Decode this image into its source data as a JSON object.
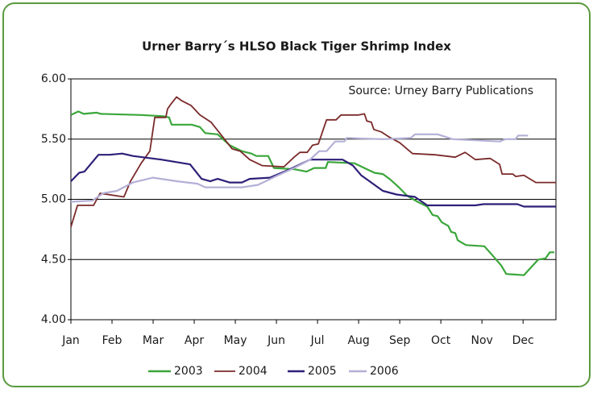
{
  "chart_data": {
    "type": "line",
    "title": "Urner Barry´s HLSO Black Tiger Shrimp Index",
    "annotation": "Source: Urney Barry Publications",
    "xlim": [
      0,
      11.8
    ],
    "xticks": [
      {
        "value": 0,
        "label": "Jan"
      },
      {
        "value": 1,
        "label": "Feb"
      },
      {
        "value": 2,
        "label": "Mar"
      },
      {
        "value": 3,
        "label": "Apr"
      },
      {
        "value": 4,
        "label": "May"
      },
      {
        "value": 5,
        "label": "Jun"
      },
      {
        "value": 6,
        "label": "Jul"
      },
      {
        "value": 7,
        "label": "Aug"
      },
      {
        "value": 8,
        "label": "Sep"
      },
      {
        "value": 9,
        "label": "Oct"
      },
      {
        "value": 10,
        "label": "Nov"
      },
      {
        "value": 11,
        "label": "Dec"
      }
    ],
    "ylim": [
      4,
      6
    ],
    "yticks": [
      {
        "value": 4,
        "label": "4.00"
      },
      {
        "value": 4.5,
        "label": "4.50"
      },
      {
        "value": 5,
        "label": "5.00"
      },
      {
        "value": 5.5,
        "label": "5.50"
      },
      {
        "value": 6,
        "label": "6.00"
      }
    ],
    "grid": true,
    "legend": "bottom",
    "series": [
      {
        "name": "2003",
        "color": "#3aa63a",
        "x": [
          0,
          0.18,
          0.31,
          0.63,
          0.73,
          1.71,
          2.25,
          2.39,
          2.45,
          2.94,
          3.14,
          3.27,
          3.57,
          3.86,
          4.16,
          4.39,
          4.51,
          4.8,
          4.94,
          5.43,
          5.73,
          5.92,
          6.2,
          6.25,
          6.9,
          7.2,
          7.39,
          7.59,
          7.75,
          7.98,
          8.18,
          8.43,
          8.67,
          8.8,
          8.92,
          9.02,
          9.18,
          9.25,
          9.35,
          9.41,
          9.61,
          10.06,
          10.27,
          10.47,
          10.59,
          11.02,
          11.18,
          11.37,
          11.55,
          11.65,
          11.76
        ],
        "values": [
          5.7,
          5.73,
          5.71,
          5.72,
          5.71,
          5.7,
          5.69,
          5.68,
          5.62,
          5.62,
          5.6,
          5.55,
          5.54,
          5.45,
          5.4,
          5.38,
          5.36,
          5.36,
          5.26,
          5.25,
          5.23,
          5.26,
          5.26,
          5.31,
          5.3,
          5.25,
          5.22,
          5.21,
          5.17,
          5.1,
          5.03,
          4.98,
          4.94,
          4.87,
          4.86,
          4.81,
          4.78,
          4.73,
          4.72,
          4.66,
          4.62,
          4.61,
          4.53,
          4.45,
          4.38,
          4.37,
          4.43,
          4.5,
          4.51,
          4.56,
          4.56
        ]
      },
      {
        "name": "2004",
        "color": "#7b2a2a",
        "x": [
          0,
          0.16,
          0.55,
          0.71,
          1.29,
          1.45,
          1.71,
          1.92,
          2.04,
          2.31,
          2.35,
          2.43,
          2.57,
          2.69,
          2.92,
          3.14,
          3.41,
          3.69,
          3.92,
          4.12,
          4.35,
          4.65,
          5.18,
          5.43,
          5.57,
          5.75,
          5.88,
          6.02,
          6.22,
          6.45,
          6.57,
          7.0,
          7.14,
          7.2,
          7.31,
          7.37,
          7.55,
          7.73,
          8.0,
          8.31,
          8.86,
          9.35,
          9.59,
          9.84,
          10.2,
          10.43,
          10.49,
          10.75,
          10.82,
          11.02,
          11.31,
          11.8
        ],
        "values": [
          4.77,
          4.95,
          4.95,
          5.05,
          5.02,
          5.15,
          5.3,
          5.4,
          5.68,
          5.68,
          5.75,
          5.79,
          5.85,
          5.82,
          5.78,
          5.7,
          5.64,
          5.52,
          5.42,
          5.4,
          5.33,
          5.28,
          5.27,
          5.35,
          5.39,
          5.39,
          5.45,
          5.46,
          5.66,
          5.66,
          5.7,
          5.7,
          5.71,
          5.65,
          5.64,
          5.58,
          5.56,
          5.52,
          5.47,
          5.38,
          5.37,
          5.35,
          5.39,
          5.33,
          5.34,
          5.29,
          5.21,
          5.21,
          5.19,
          5.2,
          5.14,
          5.14
        ]
      },
      {
        "name": "2005",
        "color": "#2e1f78",
        "x": [
          0,
          0.2,
          0.33,
          0.67,
          0.94,
          1.25,
          1.51,
          2.2,
          2.9,
          3.18,
          3.39,
          3.57,
          3.86,
          4.16,
          4.35,
          4.84,
          5.33,
          5.63,
          5.82,
          6.61,
          6.86,
          7.06,
          7.59,
          7.92,
          8.37,
          8.67,
          9.84,
          10.04,
          10.86,
          11.02,
          11.8
        ],
        "values": [
          5.15,
          5.22,
          5.23,
          5.37,
          5.37,
          5.38,
          5.36,
          5.33,
          5.29,
          5.17,
          5.15,
          5.17,
          5.14,
          5.14,
          5.17,
          5.18,
          5.25,
          5.3,
          5.33,
          5.33,
          5.28,
          5.2,
          5.07,
          5.04,
          5.02,
          4.95,
          4.95,
          4.96,
          4.96,
          4.94,
          4.94
        ]
      },
      {
        "name": "2006",
        "color": "#b3b0d6",
        "x": [
          0,
          0.53,
          0.78,
          1.12,
          1.51,
          2.0,
          2.59,
          3.08,
          3.27,
          4.16,
          4.55,
          5.04,
          5.43,
          5.82,
          6.04,
          6.22,
          6.43,
          6.65,
          6.71,
          7.59,
          8.27,
          8.37,
          8.92,
          9.29,
          10.43,
          10.57,
          10.82,
          10.88,
          11.12
        ],
        "values": [
          4.98,
          4.99,
          5.05,
          5.07,
          5.14,
          5.18,
          5.15,
          5.13,
          5.1,
          5.1,
          5.12,
          5.2,
          5.26,
          5.33,
          5.4,
          5.4,
          5.48,
          5.48,
          5.51,
          5.5,
          5.51,
          5.54,
          5.54,
          5.5,
          5.48,
          5.5,
          5.5,
          5.53,
          5.53
        ]
      }
    ]
  }
}
